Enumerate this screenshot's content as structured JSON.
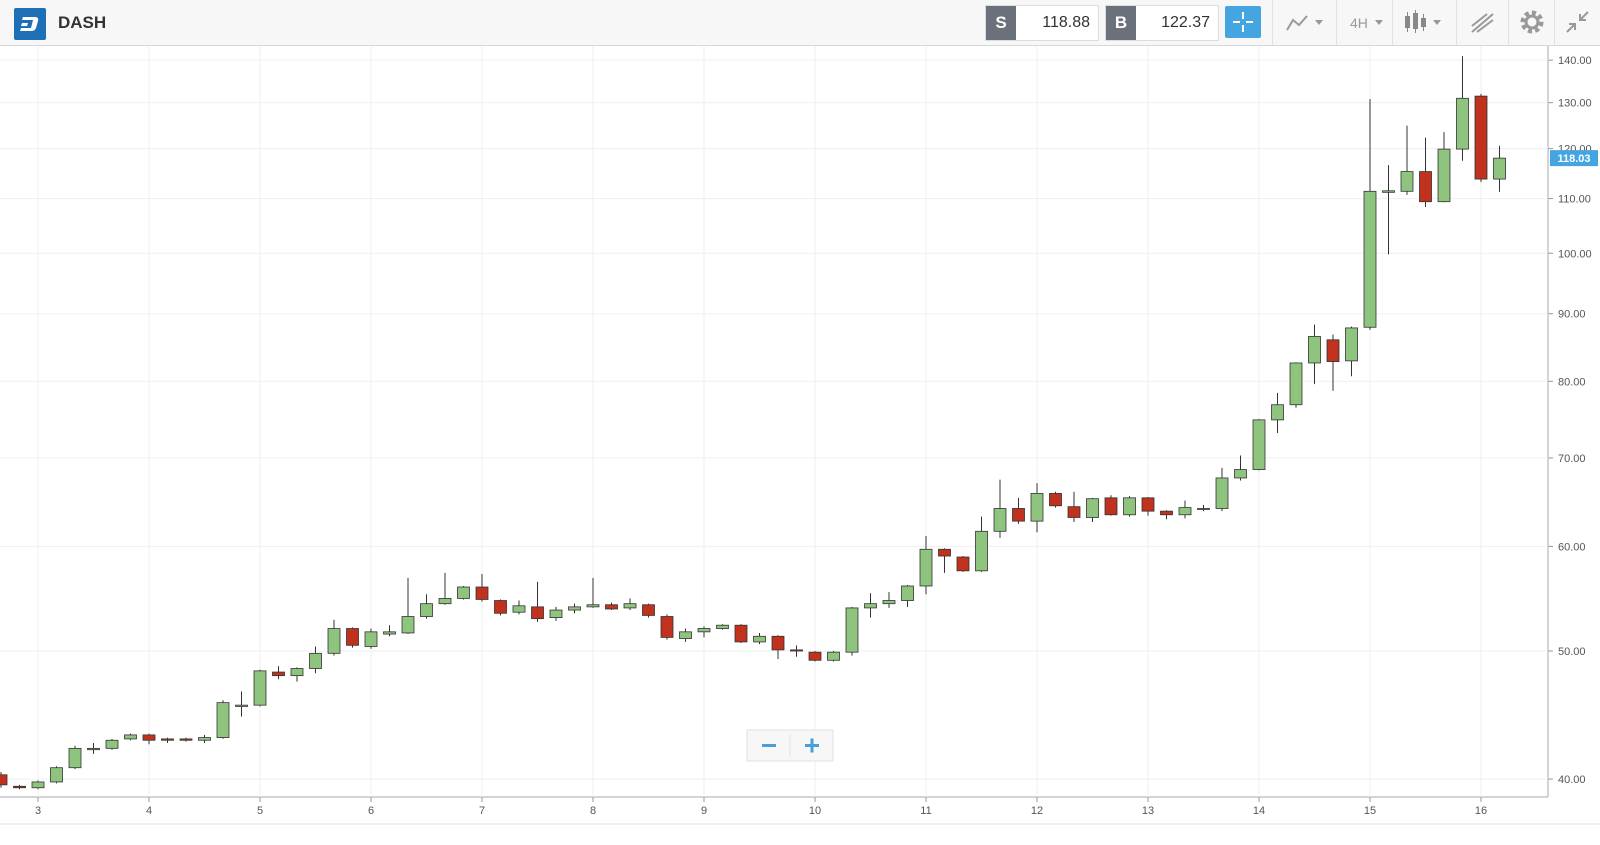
{
  "toolbar": {
    "symbol": "DASH",
    "sell_label": "S",
    "sell_price": "118.88",
    "buy_label": "B",
    "buy_price": "122.37",
    "timeframe": "4H"
  },
  "chart_data": {
    "type": "candlestick",
    "log_scale": true,
    "grid": true,
    "up_color": "#8fc47f",
    "down_color": "#c0321e",
    "categories": [
      null,
      null,
      "3",
      null,
      null,
      null,
      null,
      null,
      "4",
      null,
      null,
      null,
      null,
      null,
      "5",
      null,
      null,
      null,
      null,
      null,
      "6",
      null,
      null,
      null,
      null,
      null,
      "7",
      null,
      null,
      null,
      null,
      null,
      "8",
      null,
      null,
      null,
      null,
      null,
      "9",
      null,
      null,
      null,
      null,
      null,
      "10",
      null,
      null,
      null,
      null,
      null,
      "11",
      null,
      null,
      null,
      null,
      null,
      "12",
      null,
      null,
      null,
      null,
      null,
      "13",
      null,
      null,
      null,
      null,
      null,
      "14",
      null,
      null,
      null,
      null,
      null,
      "15",
      null,
      null,
      null,
      null,
      null,
      "16",
      null
    ],
    "open": [
      40.3,
      39.5,
      39.4,
      39.8,
      40.8,
      42.1,
      42.2,
      42.9,
      43.2,
      42.9,
      42.9,
      42.8,
      43.0,
      45.4,
      45.5,
      48.2,
      47.9,
      48.5,
      49.8,
      52.0,
      50.4,
      51.5,
      51.6,
      53.1,
      54.3,
      54.8,
      55.9,
      54.6,
      53.5,
      54.0,
      53.0,
      53.7,
      54.0,
      54.2,
      53.9,
      54.2,
      53.1,
      51.1,
      51.7,
      52.0,
      52.3,
      50.8,
      51.3,
      50.1,
      49.9,
      49.2,
      49.9,
      53.9,
      54.3,
      54.6,
      56.0,
      59.7,
      58.9,
      57.5,
      61.6,
      64.1,
      62.7,
      65.8,
      64.3,
      63.1,
      65.3,
      63.4,
      65.3,
      63.8,
      63.4,
      64.0,
      64.1,
      67.6,
      68.6,
      74.8,
      76.8,
      82.6,
      86.0,
      82.9,
      87.9,
      111.2,
      111.4,
      115.3,
      109.4,
      119.9,
      131.5,
      113.8
    ],
    "high": [
      40.5,
      39.6,
      39.9,
      40.9,
      42.4,
      42.6,
      42.9,
      43.3,
      43.3,
      43.0,
      43.0,
      43.2,
      45.9,
      46.6,
      48.4,
      48.7,
      48.6,
      50.4,
      52.8,
      52.1,
      52.0,
      52.3,
      56.8,
      55.2,
      57.3,
      56.0,
      57.2,
      54.7,
      54.6,
      56.4,
      54.0,
      54.3,
      56.8,
      54.4,
      54.8,
      54.3,
      53.3,
      52.0,
      52.2,
      52.4,
      52.4,
      51.6,
      51.4,
      50.5,
      50.0,
      50.0,
      54.0,
      55.3,
      55.4,
      56.1,
      61.1,
      59.8,
      59.0,
      63.2,
      67.4,
      65.3,
      67.0,
      66.0,
      66.0,
      65.3,
      65.6,
      65.5,
      65.4,
      63.9,
      65.0,
      64.5,
      68.8,
      70.3,
      74.9,
      78.4,
      82.7,
      88.3,
      86.8,
      88.0,
      130.8,
      116.6,
      124.9,
      122.3,
      123.5,
      141.0,
      132.0,
      120.6
    ],
    "low": [
      39.4,
      39.3,
      39.3,
      39.7,
      40.7,
      41.8,
      42.1,
      42.8,
      42.5,
      42.6,
      42.7,
      42.6,
      42.9,
      44.6,
      45.4,
      47.6,
      47.4,
      48.1,
      49.6,
      50.3,
      50.2,
      51.3,
      51.5,
      52.9,
      54.2,
      54.7,
      54.5,
      53.2,
      53.3,
      52.6,
      52.7,
      53.4,
      53.9,
      53.7,
      53.7,
      53.0,
      51.0,
      50.8,
      51.2,
      51.9,
      50.7,
      50.6,
      49.3,
      49.5,
      49.1,
      49.1,
      49.6,
      53.0,
      53.9,
      54.0,
      55.2,
      57.3,
      57.4,
      57.4,
      60.9,
      62.4,
      61.5,
      64.2,
      62.6,
      62.6,
      63.3,
      63.2,
      63.3,
      62.9,
      63.0,
      63.8,
      63.8,
      67.3,
      68.5,
      73.1,
      76.4,
      79.6,
      78.7,
      80.7,
      87.5,
      99.8,
      110.7,
      108.4,
      109.3,
      117.5,
      113.2,
      111.3
    ],
    "close": [
      39.6,
      39.4,
      39.8,
      40.8,
      42.2,
      42.2,
      42.8,
      43.2,
      42.8,
      42.8,
      42.8,
      43.0,
      45.7,
      45.5,
      48.3,
      47.9,
      48.5,
      49.8,
      52.0,
      50.5,
      51.7,
      51.7,
      53.1,
      54.3,
      54.8,
      55.9,
      54.7,
      53.4,
      54.1,
      52.9,
      53.7,
      54.0,
      54.2,
      53.8,
      54.3,
      53.2,
      51.2,
      51.7,
      52.0,
      52.3,
      50.8,
      51.3,
      50.1,
      50.0,
      49.2,
      49.9,
      53.9,
      54.3,
      54.6,
      56.0,
      59.7,
      59.0,
      57.5,
      61.6,
      64.1,
      62.7,
      65.8,
      64.4,
      63.1,
      65.2,
      63.4,
      65.3,
      63.8,
      63.4,
      64.2,
      64.1,
      67.6,
      68.6,
      74.8,
      76.8,
      82.6,
      86.5,
      82.8,
      87.8,
      111.4,
      111.5,
      115.3,
      109.4,
      119.9,
      131.0,
      113.8,
      118.03
    ],
    "ylim": [
      38.77,
      143.5
    ],
    "yticks": [
      {
        "value": 40,
        "label": "40.00"
      },
      {
        "value": 50,
        "label": "50.00"
      },
      {
        "value": 60,
        "label": "60.00"
      },
      {
        "value": 70,
        "label": "70.00"
      },
      {
        "value": 80,
        "label": "80.00"
      },
      {
        "value": 90,
        "label": "90.00"
      },
      {
        "value": 100,
        "label": "100.00"
      },
      {
        "value": 110,
        "label": "110.00"
      },
      {
        "value": 120,
        "label": "120.00"
      },
      {
        "value": 130,
        "label": "130.00"
      },
      {
        "value": 140,
        "label": "140.00"
      }
    ]
  }
}
